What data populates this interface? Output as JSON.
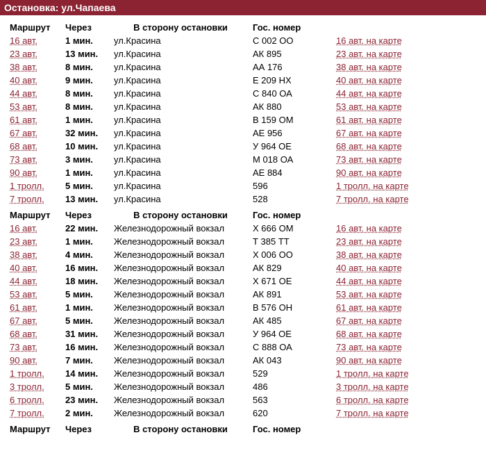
{
  "title_prefix": "Остановка: ",
  "stop_name": "ул.Чапаева",
  "headers": {
    "route": "Маршрут",
    "via": "Через",
    "direction": "В сторону остановки",
    "plate": "Гос. номер"
  },
  "map_suffix": " на карте",
  "colors": {
    "titlebar_bg": "#8b2332",
    "titlebar_fg": "#ffffff",
    "link": "#8b2332"
  },
  "sections": [
    {
      "direction_label": "ул.Красина",
      "rows": [
        {
          "route": "16 авт.",
          "time": "1 мин.",
          "dir": "ул.Красина",
          "plate": "С 002 ОО",
          "map": "16 авт."
        },
        {
          "route": "23 авт.",
          "time": "13 мин.",
          "dir": "ул.Красина",
          "plate": "АК 895",
          "map": "23 авт."
        },
        {
          "route": "38 авт.",
          "time": "8 мин.",
          "dir": "ул.Красина",
          "plate": "АА 176",
          "map": "38 авт."
        },
        {
          "route": "40 авт.",
          "time": "9 мин.",
          "dir": "ул.Красина",
          "plate": "Е 209 НХ",
          "map": "40 авт."
        },
        {
          "route": "44 авт.",
          "time": "8 мин.",
          "dir": "ул.Красина",
          "plate": "С 840 ОА",
          "map": "44 авт."
        },
        {
          "route": "53 авт.",
          "time": "8 мин.",
          "dir": "ул.Красина",
          "plate": "АК 880",
          "map": "53 авт."
        },
        {
          "route": "61 авт.",
          "time": "1 мин.",
          "dir": "ул.Красина",
          "plate": "В 159 ОМ",
          "map": "61 авт."
        },
        {
          "route": "67 авт.",
          "time": "32 мин.",
          "dir": "ул.Красина",
          "plate": "АЕ 956",
          "map": "67 авт."
        },
        {
          "route": "68 авт.",
          "time": "10 мин.",
          "dir": "ул.Красина",
          "plate": "У 964 ОЕ",
          "map": "68 авт."
        },
        {
          "route": "73 авт.",
          "time": "3 мин.",
          "dir": "ул.Красина",
          "plate": "М 018 ОА",
          "map": "73 авт."
        },
        {
          "route": "90 авт.",
          "time": "1 мин.",
          "dir": "ул.Красина",
          "plate": "АЕ 884",
          "map": "90 авт."
        },
        {
          "route": "1 тролл.",
          "time": "5 мин.",
          "dir": "ул.Красина",
          "plate": "596",
          "map": "1 тролл."
        },
        {
          "route": "7 тролл.",
          "time": "13 мин.",
          "dir": "ул.Красина",
          "plate": "528",
          "map": "7 тролл."
        }
      ]
    },
    {
      "direction_label": "Железнодорожный вокзал",
      "rows": [
        {
          "route": "16 авт.",
          "time": "22 мин.",
          "dir": "Железнодорожный вокзал",
          "plate": "Х 666 ОМ",
          "map": "16 авт."
        },
        {
          "route": "23 авт.",
          "time": "1 мин.",
          "dir": "Железнодорожный вокзал",
          "plate": "Т 385 ТТ",
          "map": "23 авт."
        },
        {
          "route": "38 авт.",
          "time": "4 мин.",
          "dir": "Железнодорожный вокзал",
          "plate": "Х 006 ОО",
          "map": "38 авт."
        },
        {
          "route": "40 авт.",
          "time": "16 мин.",
          "dir": "Железнодорожный вокзал",
          "plate": "АК 829",
          "map": "40 авт."
        },
        {
          "route": "44 авт.",
          "time": "18 мин.",
          "dir": "Железнодорожный вокзал",
          "plate": "Х 671 ОЕ",
          "map": "44 авт."
        },
        {
          "route": "53 авт.",
          "time": "5 мин.",
          "dir": "Железнодорожный вокзал",
          "plate": "АК 891",
          "map": "53 авт."
        },
        {
          "route": "61 авт.",
          "time": "1 мин.",
          "dir": "Железнодорожный вокзал",
          "plate": "В 576 ОН",
          "map": "61 авт."
        },
        {
          "route": "67 авт.",
          "time": "5 мин.",
          "dir": "Железнодорожный вокзал",
          "plate": "АК 485",
          "map": "67 авт."
        },
        {
          "route": "68 авт.",
          "time": "31 мин.",
          "dir": "Железнодорожный вокзал",
          "plate": "У 964 ОЕ",
          "map": "68 авт."
        },
        {
          "route": "73 авт.",
          "time": "16 мин.",
          "dir": "Железнодорожный вокзал",
          "plate": "С 888 ОА",
          "map": "73 авт."
        },
        {
          "route": "90 авт.",
          "time": "7 мин.",
          "dir": "Железнодорожный вокзал",
          "plate": "АК 043",
          "map": "90 авт."
        },
        {
          "route": "1 тролл.",
          "time": "14 мин.",
          "dir": "Железнодорожный вокзал",
          "plate": "529",
          "map": "1 тролл."
        },
        {
          "route": "3 тролл.",
          "time": "5 мин.",
          "dir": "Железнодорожный вокзал",
          "plate": "486",
          "map": "3 тролл."
        },
        {
          "route": "6 тролл.",
          "time": "23 мин.",
          "dir": "Железнодорожный вокзал",
          "plate": "563",
          "map": "6 тролл."
        },
        {
          "route": "7 тролл.",
          "time": "2 мин.",
          "dir": "Железнодорожный вокзал",
          "plate": "620",
          "map": "7 тролл."
        }
      ]
    },
    {
      "direction_label": "",
      "rows": []
    }
  ]
}
